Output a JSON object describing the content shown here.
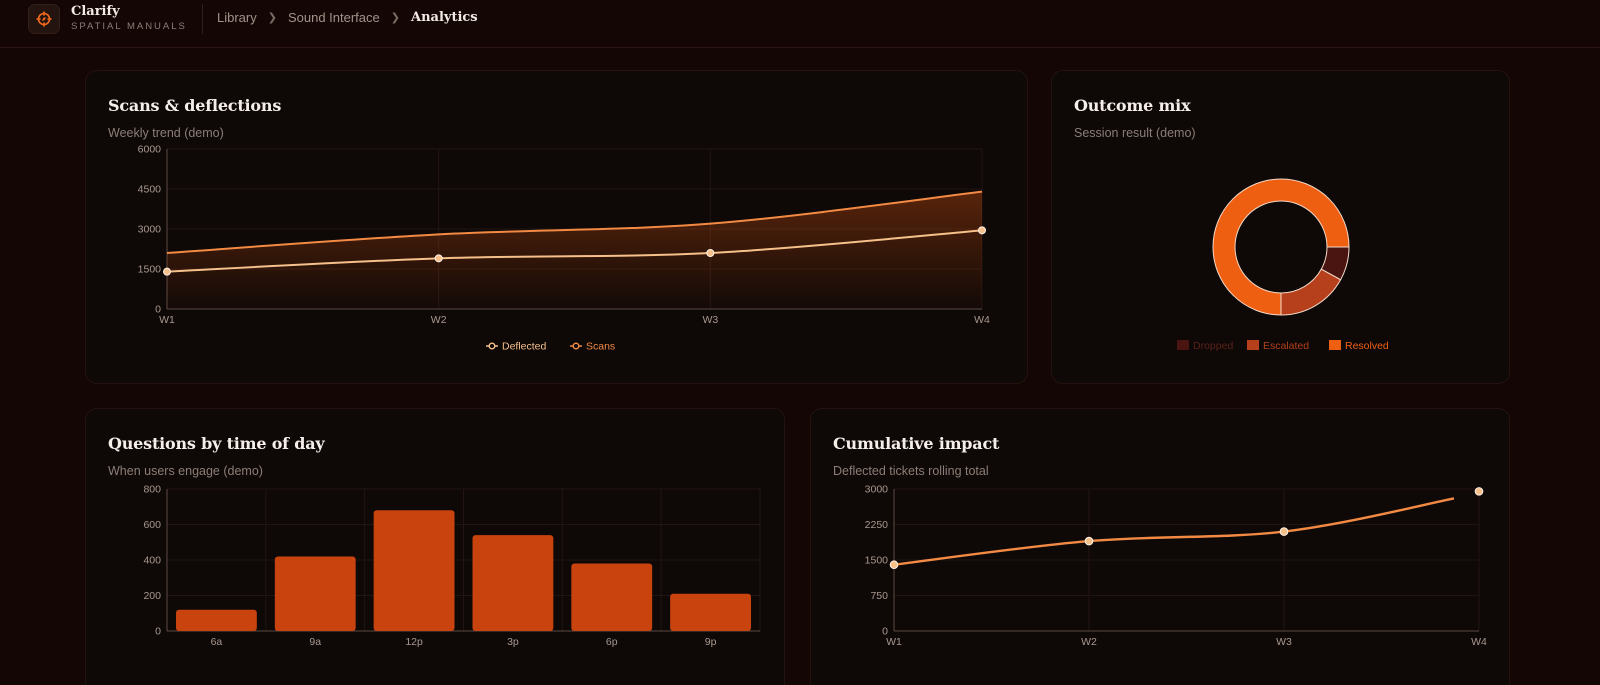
{
  "brand": {
    "name": "Clarify",
    "subtitle": "SPATIAL MANUALS",
    "logo_icon": "compass-logo-icon"
  },
  "breadcrumb": [
    {
      "label": "Library"
    },
    {
      "label": "Sound Interface"
    },
    {
      "label": "Analytics"
    }
  ],
  "colors": {
    "accent": "#f26a1b",
    "scans_line": "#f28a44",
    "deflected_line": "#f5c08a",
    "bar": "#c9430f",
    "resolved": "#ef5f12",
    "escalated": "#b5401b",
    "dropped": "#4a1510",
    "background": "#140605",
    "card": "#0e0807"
  },
  "cards": {
    "scans": {
      "title": "Scans & deflections",
      "subtitle": "Weekly trend (demo)"
    },
    "outcome": {
      "title": "Outcome mix",
      "subtitle": "Session result (demo)"
    },
    "questions": {
      "title": "Questions by time of day",
      "subtitle": "When users engage (demo)"
    },
    "impact": {
      "title": "Cumulative impact",
      "subtitle": "Deflected tickets rolling total"
    }
  },
  "chart_data": [
    {
      "type": "area",
      "title": "Scans & deflections",
      "subtitle": "Weekly trend (demo)",
      "x": [
        "W1",
        "W2",
        "W3",
        "W4"
      ],
      "series": [
        {
          "name": "Deflected",
          "values": [
            1400,
            1900,
            2100,
            2950
          ]
        },
        {
          "name": "Scans",
          "values": [
            2100,
            2800,
            3200,
            4400
          ]
        }
      ],
      "yticks": [
        0,
        1500,
        3000,
        4500,
        6000
      ],
      "ylim": [
        0,
        6000
      ],
      "legend": [
        "Deflected",
        "Scans"
      ],
      "legend_position": "bottom-center",
      "grid": true
    },
    {
      "type": "pie",
      "title": "Outcome mix",
      "subtitle": "Session result (demo)",
      "categories": [
        "Dropped",
        "Escalated",
        "Resolved"
      ],
      "values": [
        8,
        17,
        75
      ],
      "donut": true,
      "legend_position": "bottom-center"
    },
    {
      "type": "bar",
      "title": "Questions by time of day",
      "subtitle": "When users engage (demo)",
      "categories": [
        "6a",
        "9a",
        "12p",
        "3p",
        "6p",
        "9p"
      ],
      "values": [
        120,
        420,
        680,
        540,
        380,
        210
      ],
      "yticks": [
        0,
        200,
        400,
        600,
        800
      ],
      "ylim": [
        0,
        800
      ],
      "grid": true
    },
    {
      "type": "line",
      "title": "Cumulative impact",
      "subtitle": "Deflected tickets rolling total",
      "x": [
        "W1",
        "W2",
        "W3",
        "W4"
      ],
      "series": [
        {
          "name": "Deflected",
          "values": [
            1400,
            1900,
            2100,
            2950
          ]
        }
      ],
      "yticks": [
        0,
        750,
        1500,
        2250,
        3000
      ],
      "ylim": [
        0,
        3000
      ],
      "grid": true
    }
  ]
}
